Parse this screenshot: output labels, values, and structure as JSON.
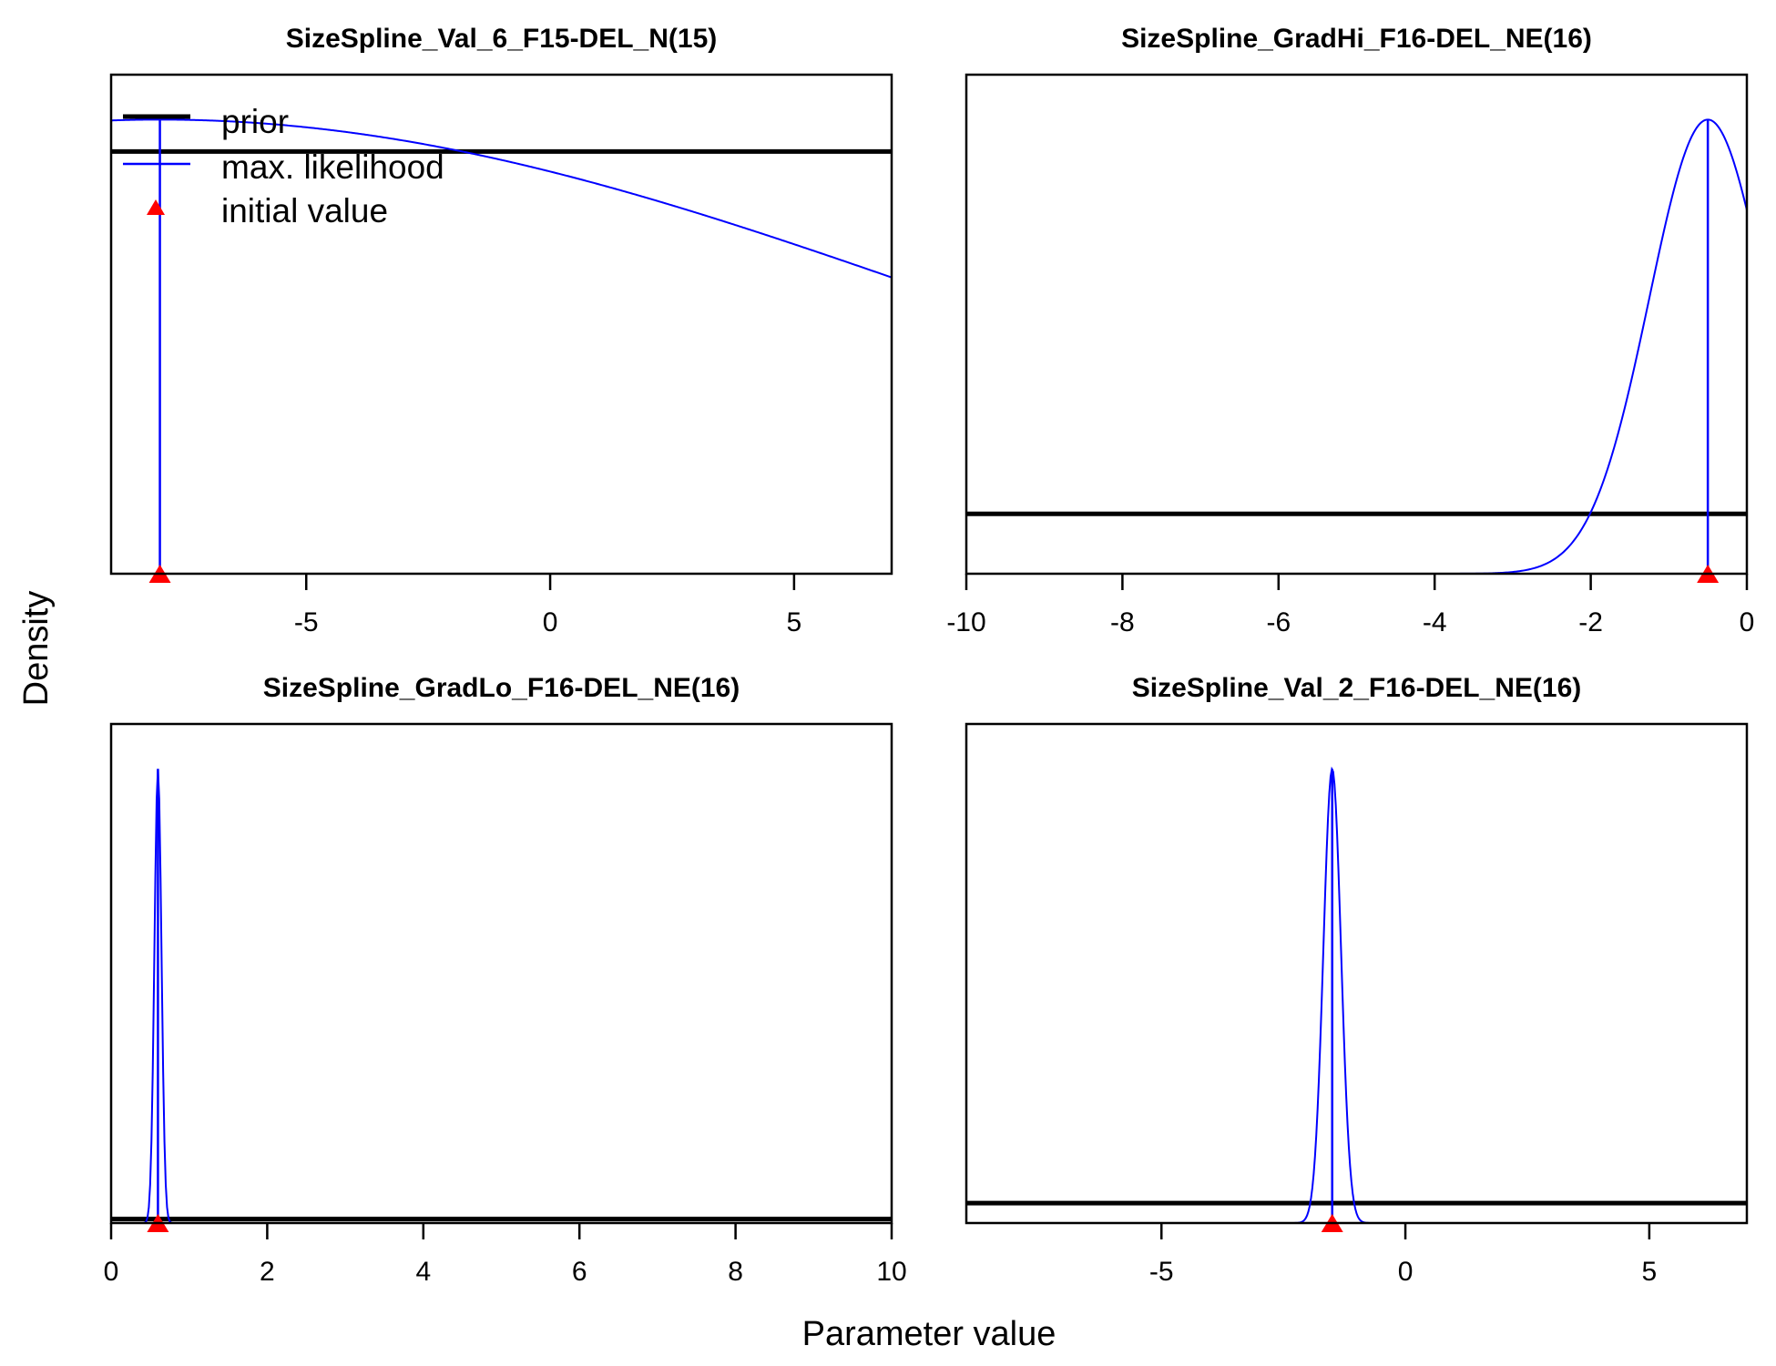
{
  "figure": {
    "ylabel": "Density",
    "xlabel": "Parameter value"
  },
  "legend": {
    "prior": "prior",
    "mle": "max. likelihood",
    "init": "initial value"
  },
  "colors": {
    "prior": "#000000",
    "mle": "#0000ff",
    "init": "#ff0000"
  },
  "chart_data": [
    {
      "type": "line",
      "title": "SizeSpline_Val_6_F15-DEL_N(15)",
      "xlim": [
        -9,
        7
      ],
      "xticks": [
        -5,
        0,
        5
      ],
      "show_legend": true,
      "prior_level": 0.846,
      "mle": {
        "kind": "gaussian",
        "mean": -8.0,
        "sd": 16.23,
        "peak": 0.91
      },
      "mle_value": -8.0,
      "initial_value": -8.0
    },
    {
      "type": "line",
      "title": "SizeSpline_GradHi_F16-DEL_NE(16)",
      "xlim": [
        -10,
        0
      ],
      "xticks": [
        -10,
        -8,
        -6,
        -4,
        -2,
        0
      ],
      "show_legend": false,
      "prior_level": 0.12,
      "mle": {
        "kind": "gaussian",
        "mean": -0.5,
        "sd": 0.75,
        "peak": 0.91
      },
      "mle_value": -0.5,
      "initial_value": -0.5
    },
    {
      "type": "line",
      "title": "SizeSpline_GradLo_F16-DEL_NE(16)",
      "xlim": [
        0,
        10
      ],
      "xticks": [
        0,
        2,
        4,
        6,
        8,
        10
      ],
      "show_legend": false,
      "prior_level": 0.008,
      "mle": {
        "kind": "gaussian",
        "mean": 0.6,
        "sd": 0.045,
        "peak": 0.91
      },
      "mle_value": 0.6,
      "initial_value": 0.6
    },
    {
      "type": "line",
      "title": "SizeSpline_Val_2_F16-DEL_NE(16)",
      "xlim": [
        -9,
        7
      ],
      "xticks": [
        -5,
        0,
        5
      ],
      "show_legend": false,
      "prior_level": 0.04,
      "mle": {
        "kind": "gaussian",
        "mean": -1.5,
        "sd": 0.18,
        "peak": 0.91
      },
      "mle_value": -1.5,
      "initial_value": -1.5
    }
  ]
}
